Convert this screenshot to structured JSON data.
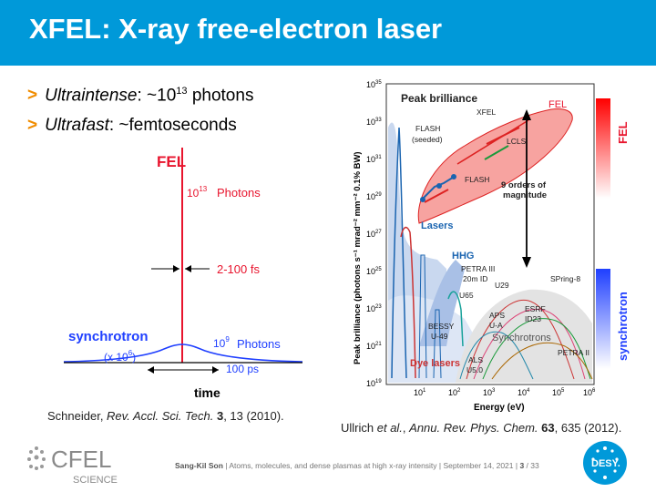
{
  "slide": {
    "title": "XFEL: X-ray free-electron laser",
    "bullets": [
      {
        "marker": ">",
        "term": "Ultraintense",
        "rest_pre": ": ~10",
        "sup": "13",
        "rest_post": " photons"
      },
      {
        "marker": ">",
        "term": "Ultrafast",
        "rest": ": ~femtoseconds"
      }
    ],
    "left_figure": {
      "fel_label": "FEL",
      "fel_photons_exp": "10",
      "fel_photons_sup": "13",
      "fel_photons_label": "Photons",
      "fel_duration": "2-100 fs",
      "sync_label": "synchrotron",
      "sync_factor_pre": "(x 10",
      "sync_factor_sup": "6",
      "sync_factor_post": ")",
      "sync_photons_exp": "10",
      "sync_photons_sup": "9",
      "sync_photons_label": "Photons",
      "sync_duration": "100 ps",
      "x_axis_label": "time",
      "colors": {
        "fel": "#e8142d",
        "sync": "#1f3fff"
      }
    },
    "left_citation": {
      "pre": "Schneider, ",
      "journal": "Rev. Accl. Sci. Tech.",
      "vol": "3",
      "post": ", 13 (2010)."
    },
    "right_figure": {
      "y_label": "Peak brilliance (photons s⁻¹ mrad⁻² mm⁻² 0.1% BW)",
      "x_label": "Energy (eV)",
      "y_ticks": [
        {
          "base": "10",
          "sup": "35"
        },
        {
          "base": "10",
          "sup": "33"
        },
        {
          "base": "10",
          "sup": "31"
        },
        {
          "base": "10",
          "sup": "29"
        },
        {
          "base": "10",
          "sup": "27"
        },
        {
          "base": "10",
          "sup": "25"
        },
        {
          "base": "10",
          "sup": "23"
        },
        {
          "base": "10",
          "sup": "21"
        },
        {
          "base": "10",
          "sup": "19"
        }
      ],
      "x_ticks": [
        {
          "base": "10",
          "sup": "1"
        },
        {
          "base": "10",
          "sup": "2"
        },
        {
          "base": "10",
          "sup": "3"
        },
        {
          "base": "10",
          "sup": "4"
        },
        {
          "base": "10",
          "sup": "5"
        },
        {
          "base": "10",
          "sup": "6"
        }
      ],
      "labels": {
        "peak_brilliance": "Peak brilliance",
        "fel": "FEL",
        "xfel": "XFEL",
        "flash_seeded_1": "FLASH",
        "flash_seeded_2": "(seeded)",
        "lcls": "LCLS",
        "flash": "FLASH",
        "orders_1": "9 orders of",
        "orders_2": "magnitude",
        "lasers": "Lasers",
        "hhg": "HHG",
        "petra3_1": "PETRA III",
        "petra3_2": "20m ID",
        "spring8": "SPring-8",
        "u29": "U29",
        "u65": "U65",
        "esrf_1": "ESRF",
        "esrf_2": "ID23",
        "aps_1": "APS",
        "aps_2": "U-A",
        "bessy_1": "BESSY",
        "bessy_2": "U-49",
        "synchrotrons": "Synchrotrons",
        "petra2": "PETRA II",
        "dye_lasers": "Dye lasers",
        "als_1": "ALS",
        "als_2": "U5.0"
      },
      "side_fel": "FEL",
      "side_sync": "synchrotron"
    },
    "right_citation": {
      "pre": "Ullrich ",
      "etal": "et al.",
      "mid": ", ",
      "journal": "Annu. Rev. Phys. Chem.",
      "vol": "63",
      "post": ", 635 (2012)."
    },
    "footer": {
      "author": "Sang-Kil Son",
      "text": " | Atoms, molecules, and dense plasmas at high x-ray intensity | September 14, 2021 | ",
      "page": "3",
      "total": " / 33"
    },
    "logos": {
      "cfel_1": "CFEL",
      "cfel_2": "SCIENCE",
      "desy": "DESY."
    }
  }
}
